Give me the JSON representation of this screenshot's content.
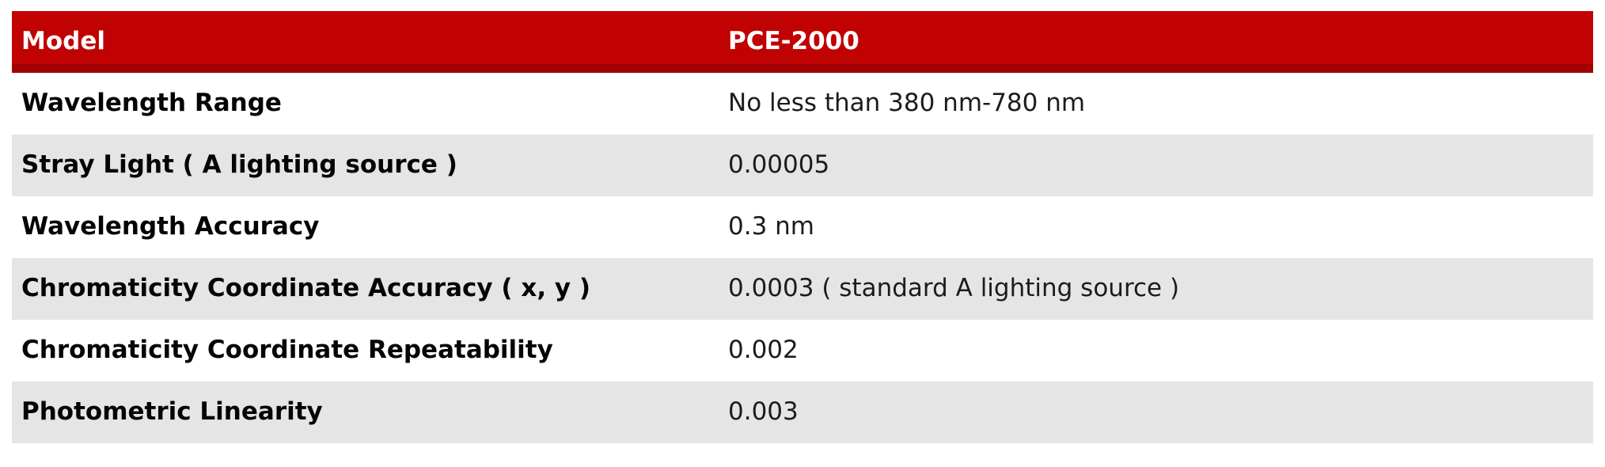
{
  "table": {
    "header": {
      "model_label": "Model",
      "model_value": "PCE-2000"
    },
    "rows": [
      {
        "label": "Wavelength Range",
        "value": "No less than 380 nm-780 nm"
      },
      {
        "label": "Stray Light ( A lighting source )",
        "value": "0.00005"
      },
      {
        "label": "Wavelength Accuracy",
        "value": "0.3 nm"
      },
      {
        "label": "Chromaticity Coordinate Accuracy ( x, y )",
        "value": "0.0003 ( standard A lighting source )"
      },
      {
        "label": "Chromaticity Coordinate Repeatability",
        "value": "0.002"
      },
      {
        "label": "Photometric Linearity",
        "value": "0.003"
      }
    ],
    "colors": {
      "header_bg": "#c10202",
      "header_border_bottom": "#a00202",
      "header_text": "#ffffff",
      "row_bg": "#ffffff",
      "alt_row_bg": "#e5e5e5",
      "label_text": "#050505",
      "value_text": "#1c1c1c"
    }
  }
}
